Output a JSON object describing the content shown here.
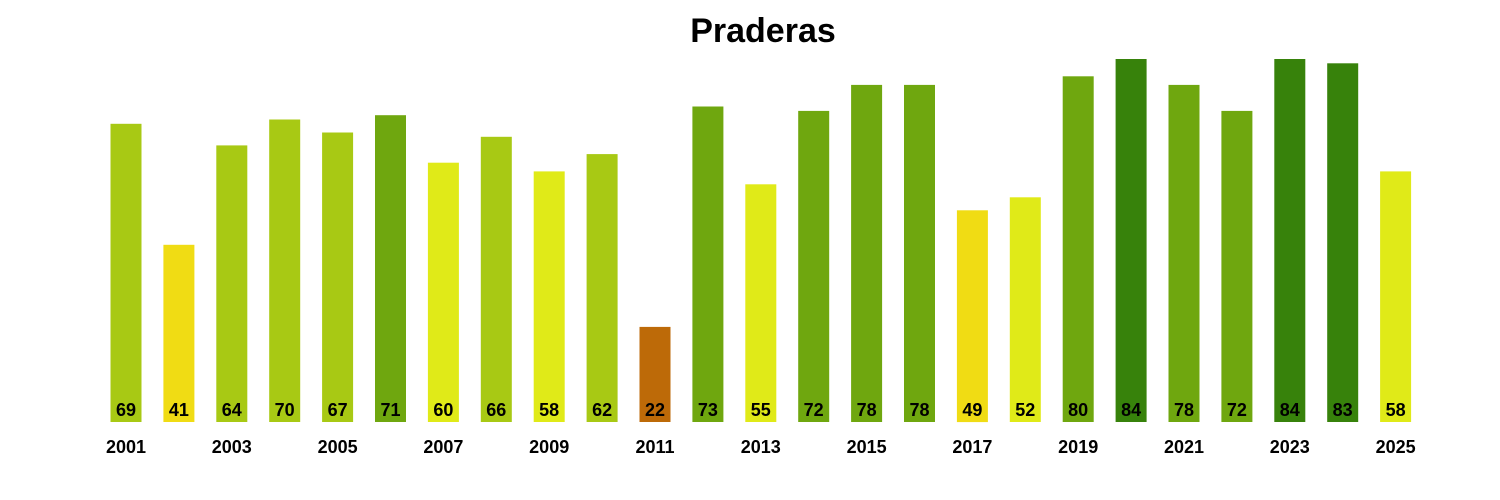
{
  "chart_data": {
    "type": "bar",
    "title": "Praderas",
    "xlabel": "",
    "ylabel": "",
    "ylim": [
      0,
      84
    ],
    "grid": false,
    "categories": [
      "2001",
      "2002",
      "2003",
      "2004",
      "2005",
      "2006",
      "2007",
      "2008",
      "2009",
      "2010",
      "2011",
      "2012",
      "2013",
      "2014",
      "2015",
      "2016",
      "2017",
      "2018",
      "2019",
      "2020",
      "2021",
      "2022",
      "2023",
      "2024",
      "2025"
    ],
    "visible_tick_labels": [
      "2001",
      "2003",
      "2005",
      "2007",
      "2009",
      "2011",
      "2013",
      "2015",
      "2017",
      "2019",
      "2021",
      "2023",
      "2025"
    ],
    "values": [
      69,
      41,
      64,
      70,
      67,
      71,
      60,
      66,
      58,
      62,
      22,
      73,
      55,
      72,
      78,
      78,
      49,
      52,
      80,
      84,
      78,
      72,
      84,
      83,
      58
    ],
    "colors": [
      "#a8c914",
      "#f0dc14",
      "#a8c914",
      "#a8c914",
      "#a8c914",
      "#6fa70f",
      "#e0ea18",
      "#a8c914",
      "#e0ea18",
      "#a8c914",
      "#bd6a08",
      "#6fa70f",
      "#e0ea18",
      "#6fa70f",
      "#6fa70f",
      "#6fa70f",
      "#f0dc14",
      "#e0ea18",
      "#6fa70f",
      "#37820b",
      "#6fa70f",
      "#6fa70f",
      "#37820b",
      "#37820b",
      "#e0ea18"
    ]
  }
}
